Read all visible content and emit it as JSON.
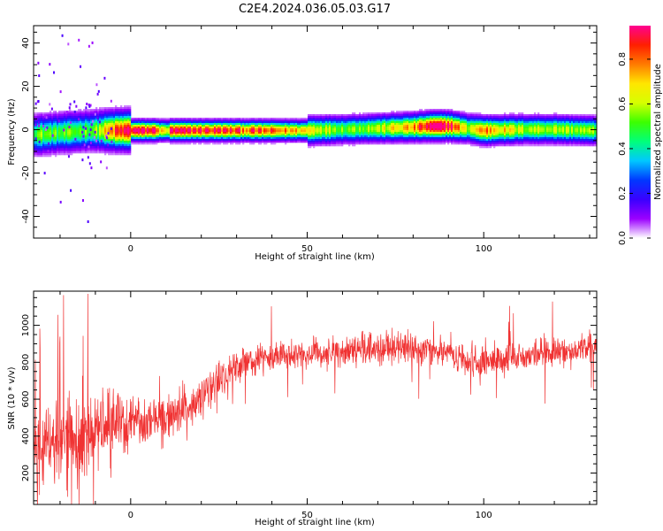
{
  "title": "C2E4.2024.036.05.03.G17",
  "chart_data": [
    {
      "type": "heatmap",
      "title": "",
      "xlabel": "Height of straight line (km)",
      "ylabel": "Frequency (Hz)",
      "xlim": [
        -27.5,
        132
      ],
      "ylim": [
        -50,
        48
      ],
      "xticks": [
        0,
        50,
        100
      ],
      "yticks": [
        -40,
        -20,
        0,
        20,
        40
      ],
      "xtick_labels": [
        "0",
        "50",
        "100"
      ],
      "ytick_labels": [
        "-40",
        "-20",
        "0",
        "20",
        "40"
      ],
      "ridge": {
        "x": [
          -27,
          -20,
          -10,
          -5,
          0,
          10,
          20,
          30,
          40,
          50,
          60,
          70,
          80,
          85,
          90,
          95,
          100,
          110,
          120,
          132
        ],
        "y": [
          -2,
          -1,
          0,
          0,
          0,
          0,
          0,
          0,
          0,
          0,
          0.5,
          1,
          1.5,
          2,
          2,
          1,
          0,
          0.5,
          0.5,
          0
        ],
        "strength": [
          0.55,
          0.5,
          0.55,
          0.8,
          0.95,
          0.9,
          0.9,
          0.85,
          0.8,
          0.7,
          0.55,
          0.6,
          0.75,
          0.95,
          0.95,
          0.6,
          0.8,
          0.6,
          0.6,
          0.55
        ]
      },
      "colorbar": {
        "label": "Normalized spectral amplitude",
        "range": [
          0,
          0.95
        ],
        "ticks": [
          0.0,
          0.2,
          0.4,
          0.6,
          0.8
        ],
        "tick_labels": [
          "0.0",
          "0.2",
          "0.4",
          "0.6",
          "0.8"
        ],
        "colors": [
          "#ffffff",
          "#9b00ff",
          "#3a00ff",
          "#0038ff",
          "#00c8ff",
          "#00ff7a",
          "#3cff00",
          "#d6ff00",
          "#ffe600",
          "#ff7b00",
          "#ff1f00",
          "#ff0090"
        ]
      }
    },
    {
      "type": "line",
      "title": "",
      "xlabel": "Height of straight line (km)",
      "ylabel": "SNR (10 * v/v)",
      "xlim": [
        -27.5,
        132
      ],
      "ylim": [
        30,
        1185
      ],
      "xticks": [
        0,
        50,
        100
      ],
      "yticks": [
        200,
        400,
        600,
        800,
        1000
      ],
      "xtick_labels": [
        "0",
        "50",
        "100"
      ],
      "ytick_labels": [
        "200",
        "400",
        "600",
        "800",
        "1000"
      ],
      "line_color": "#f03232",
      "trend": {
        "x": [
          -27.5,
          -20,
          -10,
          0,
          5,
          10,
          15,
          20,
          25,
          30,
          35,
          40,
          50,
          60,
          70,
          80,
          90,
          95,
          100,
          110,
          120,
          132
        ],
        "y": [
          330,
          380,
          420,
          470,
          480,
          490,
          540,
          620,
          700,
          770,
          810,
          830,
          840,
          860,
          880,
          870,
          870,
          820,
          800,
          830,
          860,
          880
        ],
        "spread": [
          180,
          200,
          230,
          140,
          110,
          110,
          110,
          100,
          90,
          80,
          70,
          70,
          70,
          70,
          80,
          80,
          80,
          80,
          80,
          70,
          70,
          70
        ]
      }
    }
  ]
}
